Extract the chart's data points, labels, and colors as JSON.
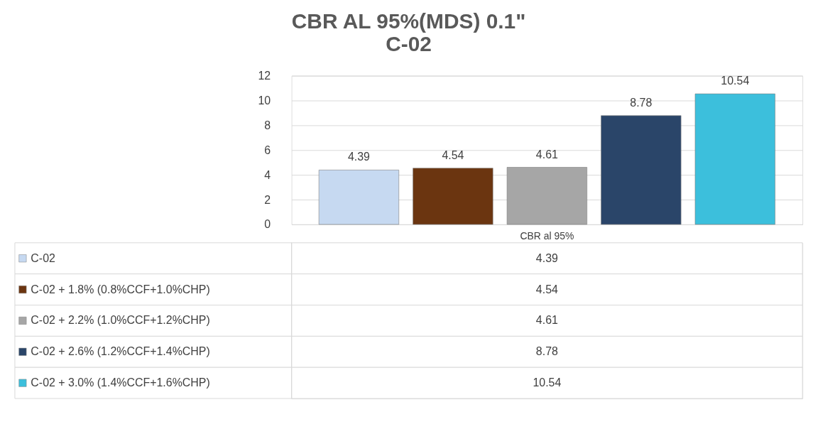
{
  "chart_data": {
    "type": "bar",
    "title": "CBR AL  95%(MDS) 0.1\"\nC-02",
    "categories": [
      "CBR al 95%"
    ],
    "series": [
      {
        "name": "C-02",
        "color": "#c6d9f1",
        "values": [
          4.39
        ]
      },
      {
        "name": "C-02 + 1.8% (0.8%CCF+1.0%CHP)",
        "color": "#6b3510",
        "values": [
          4.54
        ]
      },
      {
        "name": "C-02 + 2.2% (1.0%CCF+1.2%CHP)",
        "color": "#a6a6a6",
        "values": [
          4.61
        ]
      },
      {
        "name": "C-02 + 2.6% (1.2%CCF+1.4%CHP)",
        "color": "#2a4569",
        "values": [
          8.78
        ]
      },
      {
        "name": "C-02 + 3.0% (1.4%CCF+1.6%CHP)",
        "color": "#3cbfdc",
        "values": [
          10.54
        ]
      }
    ],
    "ylim": [
      0,
      12
    ],
    "yticks": [
      0,
      2,
      4,
      6,
      8,
      10,
      12
    ],
    "grid": "y",
    "data_labels": true,
    "annotations": [
      "4.39",
      "4.54",
      "4.61",
      "8.78",
      "10.54"
    ],
    "legend": "bottom"
  }
}
